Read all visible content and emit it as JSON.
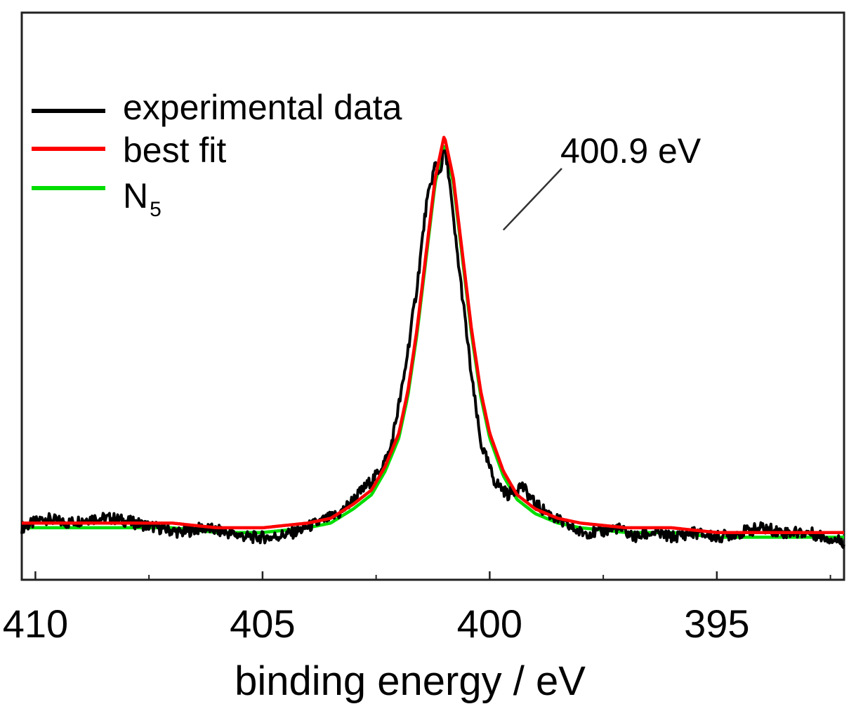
{
  "chart_data": {
    "type": "line",
    "xlabel": "binding energy / eV",
    "ylabel": "",
    "title": "",
    "x_reversed": true,
    "xlim": [
      410.3,
      392.2
    ],
    "ylim": [
      0,
      1.2
    ],
    "x_ticks_major": [
      410,
      405,
      400,
      395
    ],
    "x_ticks_minor": [
      407.5,
      402.5,
      397.5,
      392.5
    ],
    "tick_labels": [
      "410",
      "405",
      "400",
      "395"
    ],
    "grid": false,
    "legend_position": "top-left",
    "legend": [
      {
        "label": "experimental data",
        "color": "#000000",
        "sub": ""
      },
      {
        "label": "best fit",
        "color": "#ff0000",
        "sub": ""
      },
      {
        "label": "N",
        "color": "#00dd00",
        "sub": "5"
      }
    ],
    "annotation": {
      "text": "400.9 eV",
      "x": 399.7,
      "y": 0.74
    },
    "peak": {
      "center": 401.0,
      "height": 0.87,
      "fwhm": 1.24
    },
    "series": [
      {
        "name": "experimental data",
        "color": "#000000",
        "x": [
          410.3,
          409.8,
          409.3,
          408.8,
          408.3,
          407.8,
          407.3,
          406.8,
          406.3,
          405.8,
          405.3,
          404.8,
          404.3,
          403.8,
          403.3,
          402.8,
          402.5,
          402.2,
          401.9,
          401.6,
          401.4,
          401.2,
          401.1,
          401.0,
          400.9,
          400.8,
          400.6,
          400.4,
          400.2,
          399.9,
          399.6,
          399.3,
          399.0,
          398.7,
          398.4,
          398.0,
          397.6,
          397.2,
          396.8,
          396.4,
          396.0,
          395.5,
          395.0,
          394.5,
          394.0,
          393.5,
          393.0,
          392.6,
          392.2
        ],
        "y": [
          0.11,
          0.13,
          0.12,
          0.13,
          0.13,
          0.12,
          0.11,
          0.1,
          0.11,
          0.1,
          0.09,
          0.09,
          0.1,
          0.12,
          0.14,
          0.19,
          0.22,
          0.27,
          0.42,
          0.62,
          0.79,
          0.88,
          0.86,
          0.91,
          0.86,
          0.76,
          0.6,
          0.43,
          0.29,
          0.21,
          0.18,
          0.2,
          0.16,
          0.14,
          0.12,
          0.1,
          0.1,
          0.11,
          0.09,
          0.1,
          0.09,
          0.1,
          0.09,
          0.1,
          0.11,
          0.1,
          0.1,
          0.09,
          0.08
        ]
      },
      {
        "name": "best fit",
        "color": "#ff0000",
        "x": [
          410.3,
          409.0,
          408.0,
          407.0,
          406.0,
          405.0,
          404.0,
          403.5,
          403.0,
          402.6,
          402.3,
          402.0,
          401.8,
          401.6,
          401.4,
          401.2,
          401.0,
          400.8,
          400.6,
          400.4,
          400.2,
          400.0,
          399.7,
          399.4,
          399.0,
          398.5,
          398.0,
          397.0,
          396.0,
          395.0,
          394.0,
          393.0,
          392.2
        ],
        "y": [
          0.12,
          0.12,
          0.12,
          0.12,
          0.11,
          0.11,
          0.12,
          0.13,
          0.16,
          0.19,
          0.24,
          0.31,
          0.4,
          0.53,
          0.69,
          0.85,
          0.94,
          0.85,
          0.69,
          0.53,
          0.4,
          0.31,
          0.23,
          0.18,
          0.15,
          0.13,
          0.12,
          0.11,
          0.11,
          0.1,
          0.1,
          0.1,
          0.1
        ]
      },
      {
        "name": "N",
        "color": "#00dd00",
        "x": [
          410.3,
          409.0,
          408.0,
          407.0,
          406.0,
          405.0,
          404.0,
          403.5,
          403.0,
          402.6,
          402.3,
          402.0,
          401.8,
          401.6,
          401.4,
          401.2,
          401.0,
          400.8,
          400.6,
          400.4,
          400.2,
          400.0,
          399.7,
          399.4,
          399.0,
          398.5,
          398.0,
          397.0,
          396.0,
          395.0,
          394.0,
          393.0,
          392.2
        ],
        "y": [
          0.11,
          0.11,
          0.11,
          0.11,
          0.1,
          0.1,
          0.11,
          0.12,
          0.15,
          0.18,
          0.23,
          0.3,
          0.39,
          0.52,
          0.68,
          0.84,
          0.92,
          0.84,
          0.68,
          0.52,
          0.39,
          0.3,
          0.22,
          0.17,
          0.14,
          0.12,
          0.11,
          0.1,
          0.1,
          0.09,
          0.09,
          0.09,
          0.09
        ]
      }
    ]
  }
}
